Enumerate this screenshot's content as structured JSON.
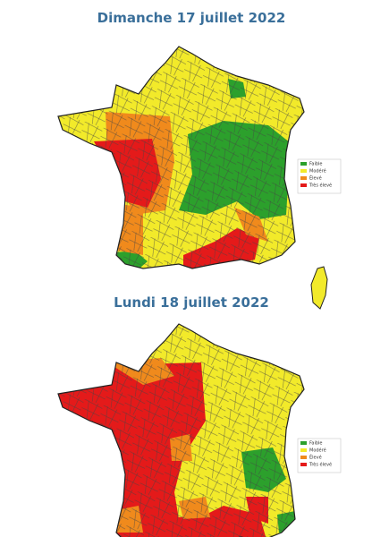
{
  "maps": [
    {
      "title": "Dimanche 17 juillet 2022"
    },
    {
      "title": "Lundi 18 juillet 2022"
    }
  ],
  "legend": [
    {
      "label": "Faible",
      "color": "#2ca02c"
    },
    {
      "label": "Modéré",
      "color": "#f2ea2a"
    },
    {
      "label": "Élevé",
      "color": "#f08a1c"
    },
    {
      "label": "Très élevé",
      "color": "#e41a1a"
    }
  ]
}
